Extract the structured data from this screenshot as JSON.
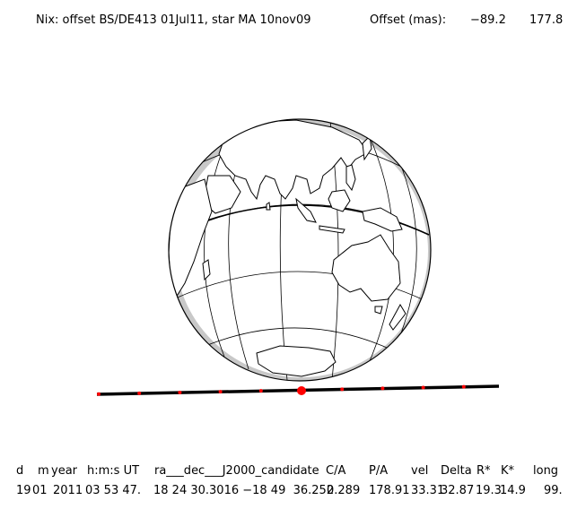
{
  "header": {
    "title": "Nix: offset BS/DE413 01Jul11, star MA 10nov09",
    "offset_label": "Offset (mas):",
    "offset_x": "−89.2",
    "offset_y": "177.8"
  },
  "globe": {
    "ocean_color": "#ffffff",
    "land_fill": "#ffffff",
    "line_color": "#000000",
    "limb_shade": "#c8c8c8",
    "view": "Earth as seen from the occulted star, centred on the Indian Ocean"
  },
  "track": {
    "line_color": "#000000",
    "marker_color": "#ff0000",
    "minute_markers": 10,
    "closest_approach_index": 5
  },
  "table": {
    "headers": [
      "d",
      "m",
      "year",
      "h:m:s UT",
      "ra___dec___J2000_candidate",
      "C/A",
      "P/A",
      "vel",
      "Delta",
      "R*",
      "K*",
      "long"
    ],
    "values": [
      "19",
      "01",
      "2011",
      "03 53 47.",
      "18 24 30.3016 −18 49  36.252",
      "0.289",
      "178.91",
      "33.31",
      "32.87",
      "19.3",
      "14.9",
      "99."
    ]
  }
}
